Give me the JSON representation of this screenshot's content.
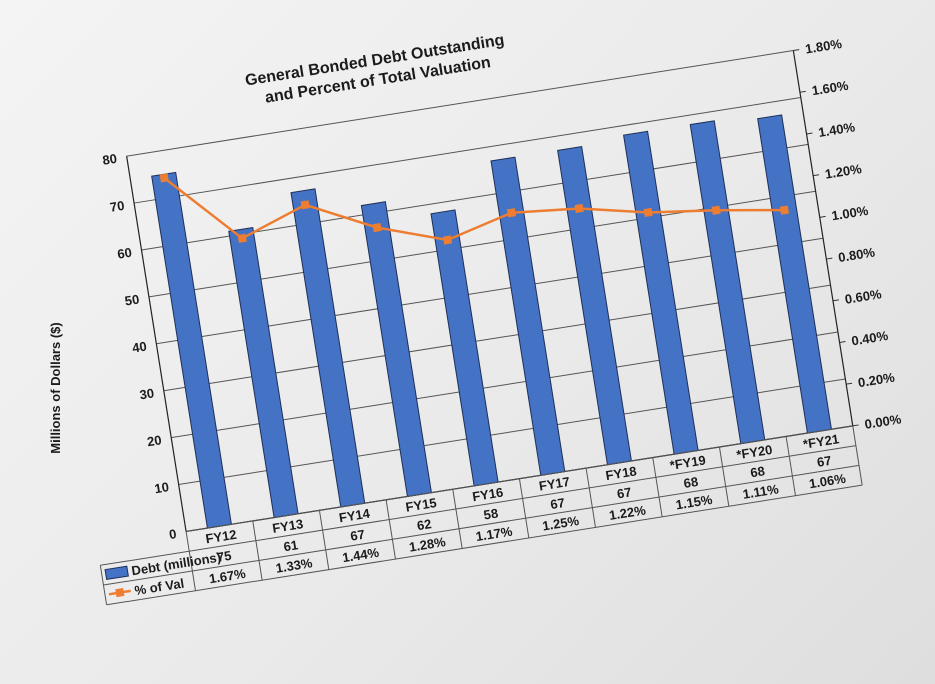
{
  "chart_data": {
    "type": "bar",
    "title_line1": "General Bonded Debt Outstanding",
    "title_line2": "and Percent of Total Valuation",
    "ylabel": "Millions of Dollars ($)",
    "ylim": [
      0,
      80
    ],
    "y2lim": [
      0,
      1.8
    ],
    "y_ticks": [
      "0",
      "10",
      "20",
      "30",
      "40",
      "50",
      "60",
      "70",
      "80"
    ],
    "y2_ticks": [
      "0.00%",
      "0.20%",
      "0.40%",
      "0.60%",
      "0.80%",
      "1.00%",
      "1.20%",
      "1.40%",
      "1.60%",
      "1.80%"
    ],
    "categories": [
      "FY12",
      "FY13",
      "FY14",
      "FY15",
      "FY16",
      "FY17",
      "FY18",
      "*FY19",
      "*FY20",
      "*FY21"
    ],
    "series": [
      {
        "name": "Debt (millions)",
        "kind": "bar",
        "color": "#4472c4",
        "values": [
          75,
          61,
          67,
          62,
          58,
          67,
          67,
          68,
          68,
          67
        ],
        "labels": [
          "75",
          "61",
          "67",
          "62",
          "58",
          "67",
          "67",
          "68",
          "68",
          "67"
        ]
      },
      {
        "name": "% of Val",
        "kind": "line",
        "color": "#ed7d31",
        "values": [
          1.67,
          1.33,
          1.44,
          1.28,
          1.17,
          1.25,
          1.22,
          1.15,
          1.11,
          1.06
        ],
        "labels": [
          "1.67%",
          "1.33%",
          "1.44%",
          "1.28%",
          "1.17%",
          "1.25%",
          "1.22%",
          "1.15%",
          "1.11%",
          "1.06%"
        ]
      }
    ],
    "grid": true,
    "legend": "data table"
  }
}
